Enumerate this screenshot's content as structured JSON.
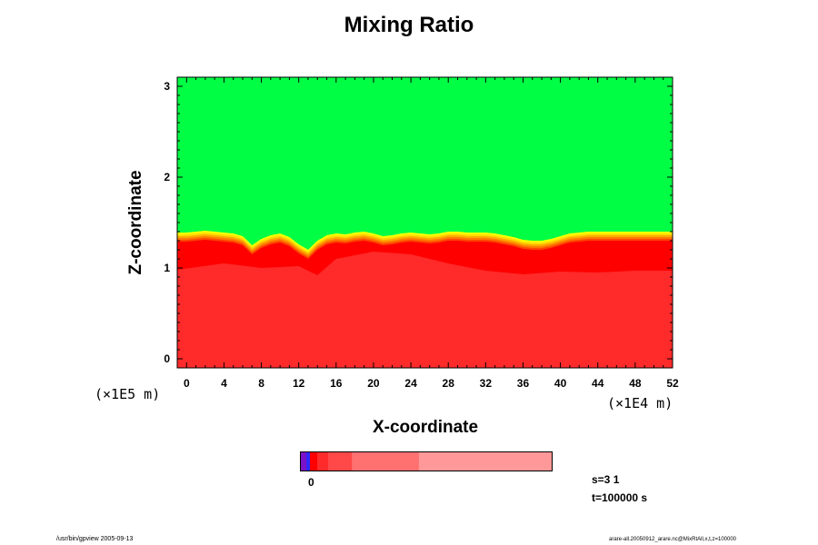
{
  "chart_data": {
    "type": "heatmap",
    "title": "Mixing Ratio",
    "xlabel": "X-coordinate",
    "ylabel": "Z-coordinate",
    "x_scale_label": "(×1E4 m)",
    "y_scale_label": "(×1E5 m)",
    "xlim": [
      -1,
      52
    ],
    "ylim": [
      -0.1,
      3.1
    ],
    "x_ticks": [
      0,
      4,
      8,
      12,
      16,
      20,
      24,
      28,
      32,
      36,
      40,
      44,
      48,
      52
    ],
    "y_ticks": [
      0,
      1,
      2,
      3
    ],
    "regions": [
      {
        "name": "upper",
        "color": "#00ff44"
      },
      {
        "name": "lower",
        "color": "#ff2a2a"
      }
    ],
    "interface_band_colors": [
      "#ffff00",
      "#ffdd00",
      "#ffaa00",
      "#ff7a00",
      "#ff4400",
      "#ff0000"
    ],
    "interface": {
      "x": [
        -1,
        0,
        1,
        2,
        3,
        4,
        5,
        6,
        7,
        8,
        9,
        10,
        11,
        12,
        13,
        14,
        15,
        16,
        17,
        18,
        19,
        20,
        21,
        22,
        23,
        24,
        25,
        26,
        27,
        28,
        29,
        30,
        31,
        32,
        33,
        34,
        35,
        36,
        37,
        38,
        39,
        40,
        41,
        42,
        43,
        44,
        45,
        46,
        47,
        48,
        49,
        50,
        51,
        52
      ],
      "z": [
        1.39,
        1.39,
        1.4,
        1.41,
        1.4,
        1.39,
        1.38,
        1.35,
        1.25,
        1.32,
        1.36,
        1.38,
        1.34,
        1.26,
        1.2,
        1.3,
        1.36,
        1.38,
        1.37,
        1.39,
        1.4,
        1.38,
        1.35,
        1.36,
        1.38,
        1.39,
        1.38,
        1.37,
        1.38,
        1.4,
        1.4,
        1.39,
        1.39,
        1.39,
        1.38,
        1.36,
        1.34,
        1.31,
        1.3,
        1.3,
        1.32,
        1.35,
        1.38,
        1.39,
        1.4,
        1.4,
        1.4,
        1.4,
        1.4,
        1.4,
        1.4,
        1.4,
        1.4,
        1.4
      ]
    },
    "dark_layer_bottom": {
      "x": [
        -1,
        4,
        8,
        12,
        14,
        16,
        20,
        24,
        28,
        32,
        36,
        40,
        44,
        48,
        52
      ],
      "z": [
        0.98,
        1.05,
        1.0,
        1.02,
        0.92,
        1.1,
        1.18,
        1.15,
        1.05,
        0.97,
        0.93,
        0.96,
        0.95,
        0.97,
        0.97
      ]
    },
    "colorbar": {
      "tick_label": "0",
      "segments": [
        {
          "color": "#7a12c8",
          "width": 1
        },
        {
          "color": "#2a2aff",
          "width": 0.6
        },
        {
          "color": "#ff0000",
          "width": 1.3
        },
        {
          "color": "#ff2a2a",
          "width": 1.9
        },
        {
          "color": "#ff4848",
          "width": 4.2
        },
        {
          "color": "#ff7070",
          "width": 11.8
        },
        {
          "color": "#ff9898",
          "width": 23.4
        }
      ]
    }
  },
  "info": {
    "s": "s=3 1",
    "t": "t=100000 s"
  },
  "footer": {
    "left": "/usr/bin/gpview 2005-09-13",
    "right": "arare-all.20050912_arare.nc@MixRtAll,x,t,z=100000"
  }
}
